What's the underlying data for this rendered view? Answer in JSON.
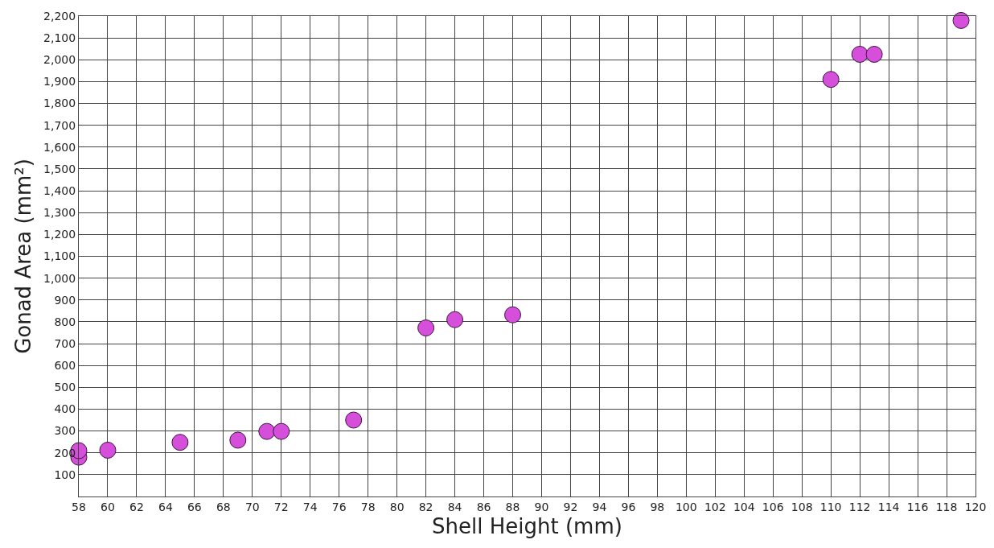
{
  "chart_data": {
    "type": "scatter",
    "xlabel": "Shell Height (mm)",
    "ylabel": "Gonad Area (mm²)",
    "x": [
      58,
      58,
      60,
      65,
      69,
      71,
      72,
      77,
      82,
      84,
      88,
      110,
      112,
      113,
      119
    ],
    "series": [
      {
        "color": "#d54fdb",
        "values": [
          180,
          210,
          212,
          248,
          258,
          298,
          298,
          350,
          772,
          810,
          832,
          1910,
          2025,
          2025,
          2180
        ]
      }
    ],
    "xlim": [
      58,
      120
    ],
    "xticks": [
      58,
      60,
      62,
      64,
      66,
      68,
      70,
      72,
      74,
      76,
      78,
      80,
      82,
      84,
      86,
      88,
      90,
      92,
      94,
      96,
      98,
      100,
      102,
      104,
      106,
      108,
      110,
      112,
      114,
      116,
      118,
      120
    ],
    "ylim": [
      0,
      2200
    ],
    "yticks": [
      {
        "value": 0,
        "label": null
      },
      {
        "value": 100,
        "label": "100"
      },
      {
        "value": 200,
        "label": "200"
      },
      {
        "value": 300,
        "label": "300"
      },
      {
        "value": 400,
        "label": "400"
      },
      {
        "value": 500,
        "label": "500"
      },
      {
        "value": 600,
        "label": "600"
      },
      {
        "value": 700,
        "label": "700"
      },
      {
        "value": 800,
        "label": "800"
      },
      {
        "value": 900,
        "label": "900"
      },
      {
        "value": 1000,
        "label": "1,000"
      },
      {
        "value": 1100,
        "label": "1,100"
      },
      {
        "value": 1200,
        "label": "1,200"
      },
      {
        "value": 1300,
        "label": "1,300"
      },
      {
        "value": 1400,
        "label": "1,400"
      },
      {
        "value": 1500,
        "label": "1,500"
      },
      {
        "value": 1600,
        "label": "1,600"
      },
      {
        "value": 1700,
        "label": "1,700"
      },
      {
        "value": 1800,
        "label": "1,800"
      },
      {
        "value": 1900,
        "label": "1,900"
      },
      {
        "value": 2000,
        "label": "2,000"
      },
      {
        "value": 2100,
        "label": "2,100"
      },
      {
        "value": 2200,
        "label": "2,200"
      }
    ],
    "grid": true,
    "marker": "circle"
  }
}
